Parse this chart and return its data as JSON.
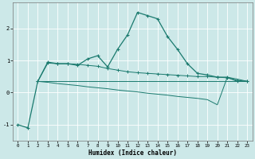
{
  "title": "",
  "xlabel": "Humidex (Indice chaleur)",
  "bg_color": "#cce8e8",
  "grid_color": "#ffffff",
  "line_color": "#1a7a6e",
  "xlim": [
    -0.5,
    23.5
  ],
  "ylim": [
    -1.5,
    2.8
  ],
  "yticks": [
    -1,
    0,
    1,
    2
  ],
  "xticks": [
    0,
    1,
    2,
    3,
    4,
    5,
    6,
    7,
    8,
    9,
    10,
    11,
    12,
    13,
    14,
    15,
    16,
    17,
    18,
    19,
    20,
    21,
    22,
    23
  ],
  "line1_x": [
    0,
    1,
    2,
    3,
    4,
    5,
    6,
    7,
    8,
    9,
    10,
    11,
    12,
    13,
    14,
    15,
    16,
    17,
    18,
    19,
    20,
    21,
    22,
    23
  ],
  "line1_y": [
    -1.0,
    -1.1,
    0.35,
    0.95,
    0.9,
    0.9,
    0.85,
    1.05,
    1.15,
    0.8,
    1.35,
    1.8,
    2.5,
    2.4,
    2.3,
    1.75,
    1.35,
    0.9,
    0.6,
    0.55,
    0.48,
    0.48,
    0.35,
    0.35
  ],
  "line2_x": [
    2,
    3,
    4,
    5,
    6,
    7,
    8,
    9,
    10,
    11,
    12,
    13,
    14,
    15,
    16,
    17,
    18,
    19,
    20,
    21,
    22,
    23
  ],
  "line2_y": [
    0.35,
    0.92,
    0.9,
    0.9,
    0.88,
    0.85,
    0.82,
    0.75,
    0.7,
    0.65,
    0.62,
    0.6,
    0.58,
    0.56,
    0.54,
    0.52,
    0.5,
    0.5,
    0.48,
    0.46,
    0.38,
    0.35
  ],
  "line3_x": [
    2,
    3,
    4,
    5,
    6,
    7,
    8,
    9,
    10,
    11,
    12,
    13,
    14,
    15,
    16,
    17,
    18,
    19,
    20,
    21,
    22,
    23
  ],
  "line3_y": [
    0.35,
    0.32,
    0.28,
    0.25,
    0.22,
    0.18,
    0.15,
    0.12,
    0.08,
    0.05,
    0.02,
    -0.02,
    -0.05,
    -0.08,
    -0.12,
    -0.15,
    -0.18,
    -0.22,
    -0.38,
    0.48,
    0.42,
    0.35
  ],
  "line4_x": [
    2,
    3,
    4,
    5,
    6,
    7,
    8,
    9,
    10,
    11,
    12,
    13,
    14,
    15,
    16,
    17,
    18,
    19,
    20,
    21,
    22,
    23
  ],
  "line4_y": [
    0.35,
    0.35,
    0.35,
    0.35,
    0.35,
    0.35,
    0.35,
    0.35,
    0.35,
    0.35,
    0.35,
    0.35,
    0.35,
    0.35,
    0.35,
    0.35,
    0.35,
    0.35,
    0.35,
    0.35,
    0.35,
    0.35
  ]
}
